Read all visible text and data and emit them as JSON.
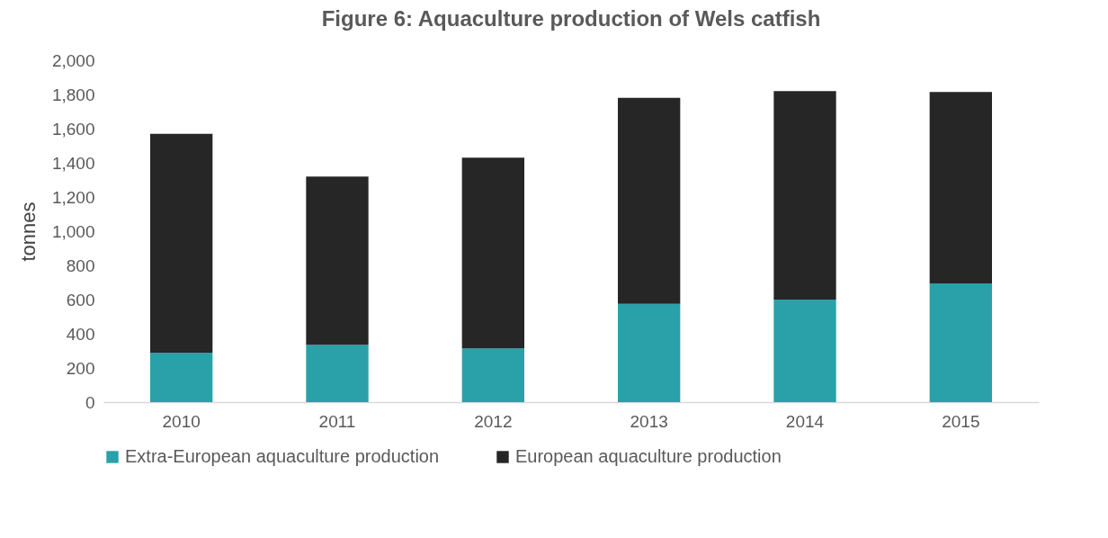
{
  "chart_data": {
    "type": "bar",
    "title": "Figure 6: Aquaculture production of Wels catfish",
    "ylabel": "tonnes",
    "categories": [
      "2010",
      "2011",
      "2012",
      "2013",
      "2014",
      "2015"
    ],
    "stacked": true,
    "series": [
      {
        "name": "Extra-European aquaculture production",
        "color": "#2aa0a8",
        "values": [
          290,
          335,
          315,
          575,
          600,
          695
        ]
      },
      {
        "name": "European aquaculture production",
        "color": "#262626",
        "values": [
          1280,
          985,
          1115,
          1205,
          1220,
          1120
        ]
      }
    ],
    "ylim": [
      0,
      2000
    ],
    "yticks": [
      {
        "value": 0,
        "label": "0"
      },
      {
        "value": 200,
        "label": "200"
      },
      {
        "value": 400,
        "label": "400"
      },
      {
        "value": 600,
        "label": "600"
      },
      {
        "value": 800,
        "label": "800"
      },
      {
        "value": 1000,
        "label": "1,000"
      },
      {
        "value": 1200,
        "label": "1,200"
      },
      {
        "value": 1400,
        "label": "1,400"
      },
      {
        "value": 1600,
        "label": "1,600"
      },
      {
        "value": 1800,
        "label": "1,800"
      },
      {
        "value": 2000,
        "label": "2,000"
      }
    ],
    "grid": false,
    "legend": "bottom"
  }
}
